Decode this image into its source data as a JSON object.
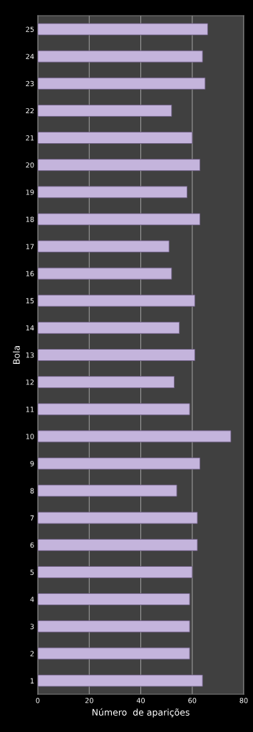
{
  "chart_data": {
    "type": "bar",
    "orientation": "horizontal",
    "xlabel": "Número  de aparições",
    "ylabel": "Bola",
    "categories": [
      "25",
      "24",
      "23",
      "22",
      "21",
      "20",
      "19",
      "18",
      "17",
      "16",
      "15",
      "14",
      "13",
      "12",
      "11",
      "10",
      "9",
      "8",
      "7",
      "6",
      "5",
      "4",
      "3",
      "2",
      "1"
    ],
    "values": [
      66,
      64,
      65,
      52,
      60,
      63,
      58,
      63,
      51,
      52,
      61,
      55,
      61,
      53,
      59,
      75,
      63,
      54,
      62,
      62,
      60,
      59,
      59,
      59,
      64
    ],
    "color": "#c4b4dc",
    "xlim": [
      0,
      80
    ],
    "xticks": [
      0,
      20,
      40,
      60,
      80
    ],
    "grid": "x"
  }
}
